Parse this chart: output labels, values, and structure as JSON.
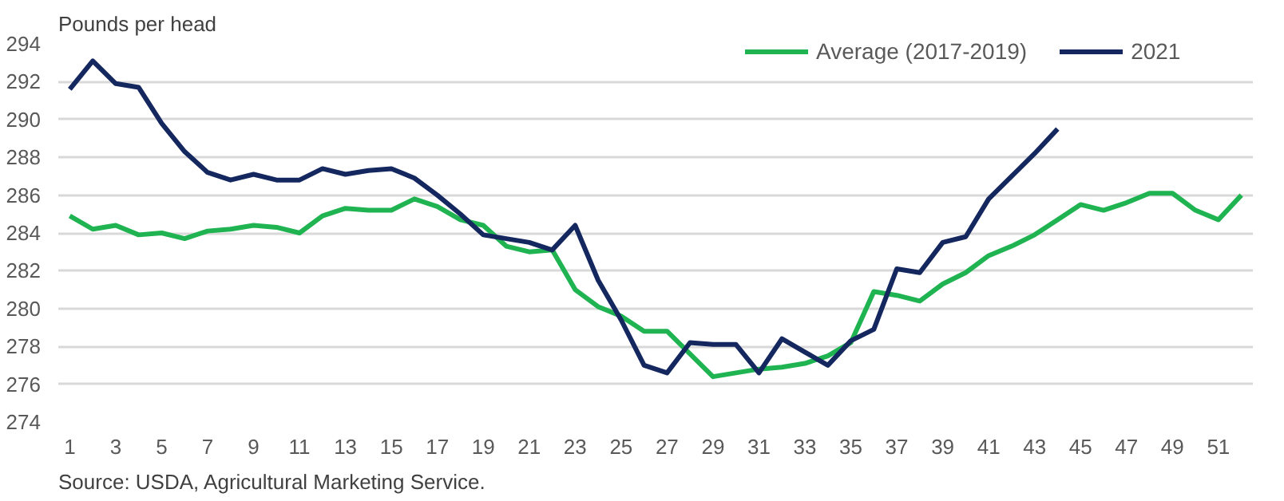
{
  "chart_data": {
    "type": "line",
    "ylabel": "Pounds per head",
    "annotations": [
      "Source: USDA, Agricultural Marketing Service."
    ],
    "x": [
      1,
      2,
      3,
      4,
      5,
      6,
      7,
      8,
      9,
      10,
      11,
      12,
      13,
      14,
      15,
      16,
      17,
      18,
      19,
      20,
      21,
      22,
      23,
      24,
      25,
      26,
      27,
      28,
      29,
      30,
      31,
      32,
      33,
      34,
      35,
      36,
      37,
      38,
      39,
      40,
      41,
      42,
      43,
      44,
      45,
      46,
      47,
      48,
      49,
      50,
      51,
      52
    ],
    "series": [
      {
        "name": "Average (2017-2019)",
        "color": "#1fb451",
        "values": [
          284.9,
          284.2,
          284.4,
          283.9,
          284.0,
          283.7,
          284.1,
          284.2,
          284.4,
          284.3,
          284.0,
          284.9,
          285.3,
          285.2,
          285.2,
          285.8,
          285.4,
          284.7,
          284.4,
          283.3,
          283.0,
          283.1,
          281.0,
          280.1,
          279.6,
          278.8,
          278.8,
          277.6,
          276.4,
          276.6,
          276.8,
          276.9,
          277.1,
          277.5,
          278.2,
          280.9,
          280.7,
          280.4,
          281.3,
          281.9,
          282.8,
          283.3,
          283.9,
          284.7,
          285.5,
          285.2,
          285.6,
          286.1,
          286.1,
          285.2,
          284.7,
          286.0
        ]
      },
      {
        "name": "2021",
        "color": "#14285f",
        "values": [
          291.6,
          293.1,
          291.9,
          291.7,
          289.8,
          288.3,
          287.2,
          286.8,
          287.1,
          286.8,
          286.8,
          287.4,
          287.1,
          287.3,
          287.4,
          286.9,
          286.0,
          285.0,
          283.9,
          283.7,
          283.5,
          283.1,
          284.4,
          281.5,
          279.4,
          277.0,
          276.6,
          278.2,
          278.1,
          278.1,
          276.6,
          278.4,
          277.7,
          277.0,
          278.3,
          278.9,
          282.1,
          281.9,
          283.5,
          283.8,
          285.8,
          287.0,
          288.2,
          289.5,
          null,
          null,
          null,
          null,
          null,
          null,
          null,
          null
        ]
      }
    ],
    "xlim": [
      0.5,
      52.5
    ],
    "xticks": [
      1,
      3,
      5,
      7,
      9,
      11,
      13,
      15,
      17,
      19,
      21,
      23,
      25,
      27,
      29,
      31,
      33,
      35,
      37,
      39,
      41,
      43,
      45,
      47,
      49,
      51
    ],
    "ylim": [
      274,
      294
    ],
    "yticks": [
      274,
      276,
      278,
      280,
      282,
      284,
      286,
      288,
      290,
      292,
      294
    ],
    "grid": "y",
    "legend": "top right",
    "marker": "none",
    "line_style": "solid"
  }
}
